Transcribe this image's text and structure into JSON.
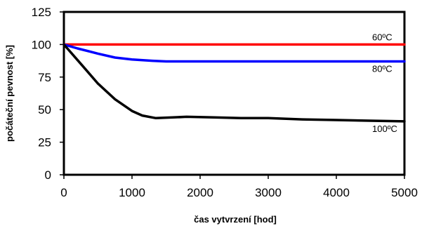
{
  "chart_data": {
    "type": "line",
    "title": "",
    "xlabel": "čas vytvrzení [hod]",
    "ylabel": "počáteční pevnost [%]",
    "xlim": [
      0,
      5000
    ],
    "ylim": [
      0,
      125
    ],
    "x_ticks": [
      "0",
      "1000",
      "2000",
      "3000",
      "4000",
      "5000"
    ],
    "y_ticks": [
      "0",
      "25",
      "50",
      "75",
      "100",
      "125"
    ],
    "grid": false,
    "legend": "none",
    "series": [
      {
        "name": "60ºC",
        "color": "#ff0000",
        "points": [
          [
            0,
            100
          ],
          [
            5000,
            100
          ]
        ]
      },
      {
        "name": "80ºC",
        "color": "#0000ff",
        "points": [
          [
            0,
            100
          ],
          [
            200,
            97
          ],
          [
            500,
            93
          ],
          [
            750,
            90
          ],
          [
            1000,
            88.5
          ],
          [
            1300,
            87.5
          ],
          [
            1500,
            87
          ],
          [
            2000,
            87
          ],
          [
            3000,
            87
          ],
          [
            4000,
            87
          ],
          [
            5000,
            87
          ]
        ]
      },
      {
        "name": "100ºC",
        "color": "#000000",
        "points": [
          [
            0,
            100
          ],
          [
            250,
            85
          ],
          [
            500,
            70
          ],
          [
            750,
            58
          ],
          [
            1000,
            49
          ],
          [
            1150,
            45.5
          ],
          [
            1350,
            43.5
          ],
          [
            1600,
            44
          ],
          [
            1800,
            44.5
          ],
          [
            2200,
            44
          ],
          [
            2600,
            43.5
          ],
          [
            3000,
            43.5
          ],
          [
            3500,
            42.5
          ],
          [
            4000,
            42
          ],
          [
            4500,
            41.5
          ],
          [
            5000,
            41
          ]
        ]
      }
    ]
  }
}
